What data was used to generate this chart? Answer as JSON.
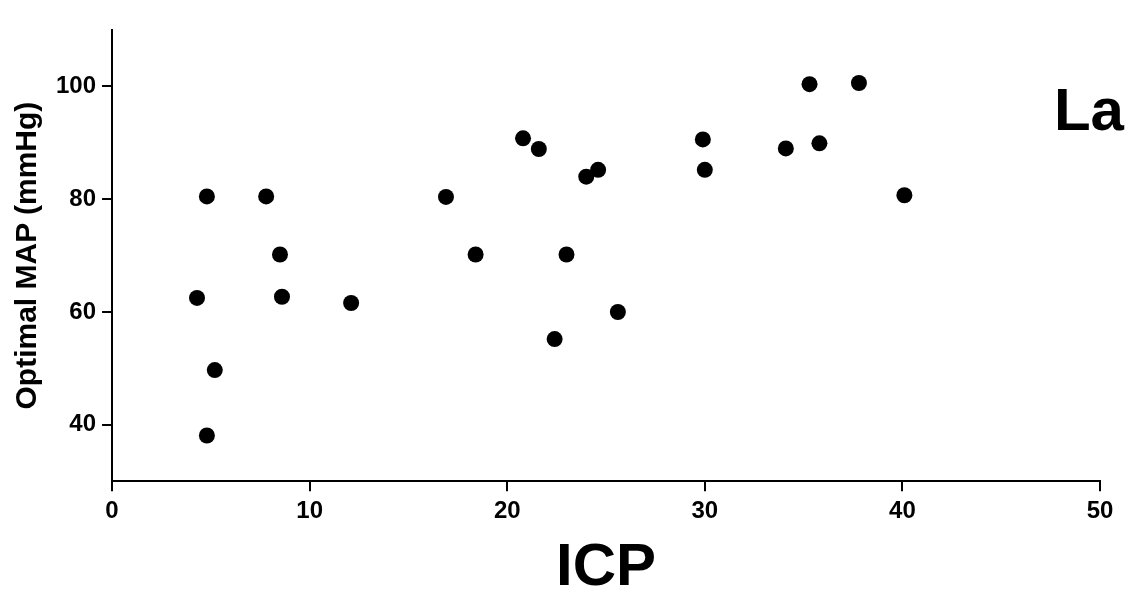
{
  "chart_data": {
    "type": "scatter",
    "xlabel": "ICP",
    "ylabel": "Optimal MAP (mmHg)",
    "annotations": [
      "La"
    ],
    "x": [
      4.8,
      7.8,
      16.9,
      8.5,
      18.4,
      23.0,
      4.3,
      8.6,
      12.1,
      5.2,
      4.8,
      22.4,
      20.8,
      21.6,
      24.0,
      24.6,
      25.6,
      29.9,
      30.0,
      35.3,
      37.8,
      34.1,
      35.8,
      40.1
    ],
    "series": [
      {
        "color": "#000000",
        "values": [
          80.5,
          80.5,
          80.4,
          70.2,
          70.2,
          70.2,
          62.5,
          62.7,
          61.6,
          49.7,
          38.1,
          55.2,
          90.8,
          88.9,
          84.0,
          85.2,
          60.0,
          90.6,
          85.2,
          100.4,
          100.6,
          89.0,
          89.9,
          80.7
        ]
      }
    ],
    "xlim": [
      0,
      50
    ],
    "xticks": [
      0,
      10,
      20,
      30,
      40,
      50
    ],
    "ylim": [
      30,
      110
    ],
    "yticks": [
      40,
      60,
      80,
      100
    ],
    "marker": "circle",
    "grid": false,
    "legend": false
  }
}
